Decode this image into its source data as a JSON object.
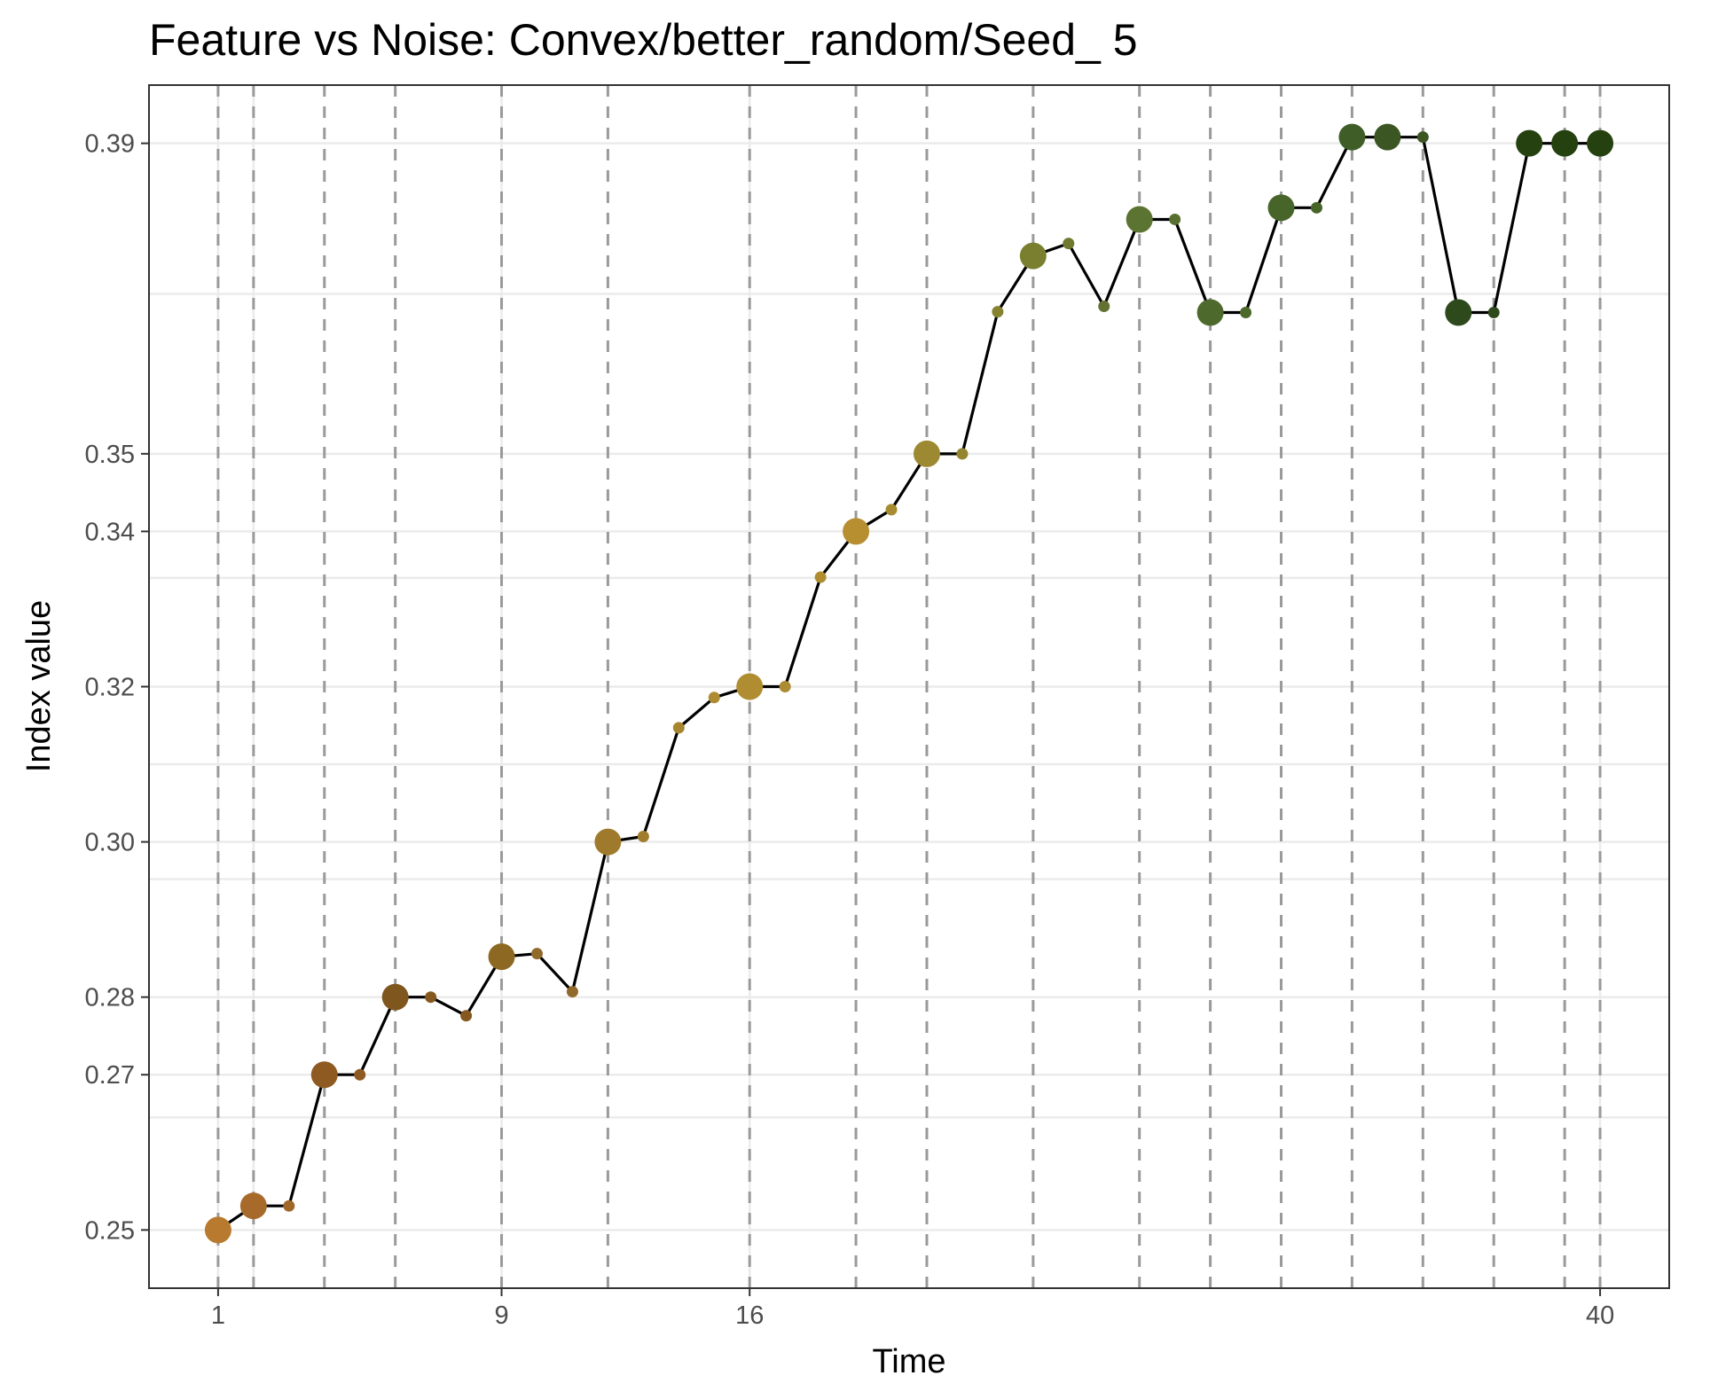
{
  "chart_data": {
    "type": "line",
    "title": "Feature vs Noise: Convex/better_random/Seed_ 5",
    "xlabel": "Time",
    "ylabel": "Index value",
    "xlim": [
      -0.95,
      41.95
    ],
    "ylim": [
      0.2425,
      0.3975
    ],
    "x_breaks": [
      1,
      9,
      16,
      40
    ],
    "x_tick_labels": [
      "1",
      "9",
      "16",
      "40"
    ],
    "y_breaks": [
      0.25,
      0.27,
      0.28,
      0.3,
      0.32,
      0.34,
      0.35,
      0.39
    ],
    "y_tick_labels": [
      "0.25",
      "0.27",
      "0.28",
      "0.30",
      "0.32",
      "0.34",
      "0.35",
      "0.39"
    ],
    "y_gridlines_at": [
      0.25,
      0.2645,
      0.27,
      0.28,
      0.2952,
      0.3,
      0.31,
      0.32,
      0.334,
      0.34,
      0.35,
      0.3706,
      0.39
    ],
    "x_minor_gridlines_at": [
      1,
      2,
      9,
      16,
      40
    ],
    "vertical_dashed_lines": [
      1,
      2,
      4,
      6,
      9,
      12,
      16,
      19,
      21,
      24,
      27,
      29,
      31,
      33,
      35,
      37,
      39,
      40
    ],
    "grid": true,
    "legend": "none",
    "line_color": "#000000",
    "series": [
      {
        "x": [
          1,
          2,
          3,
          4,
          5,
          6,
          7,
          8,
          9,
          10,
          11,
          12,
          13,
          14,
          15,
          16,
          17,
          18,
          19,
          20,
          21,
          22,
          23,
          24,
          25,
          26,
          27,
          28,
          29,
          30,
          31,
          32,
          33,
          34,
          35,
          36,
          37,
          38,
          39,
          40
        ],
        "y": [
          0.25,
          0.2531,
          0.2531,
          0.27,
          0.27,
          0.28,
          0.28,
          0.2776,
          0.2852,
          0.2856,
          0.2807,
          0.3,
          0.3007,
          0.3147,
          0.3186,
          0.32,
          0.32,
          0.3341,
          0.34,
          0.3428,
          0.35,
          0.35,
          0.3683,
          0.3755,
          0.3771,
          0.369,
          0.3802,
          0.3802,
          0.3682,
          0.3682,
          0.3817,
          0.3817,
          0.3908,
          0.3908,
          0.3908,
          0.3682,
          0.3682,
          0.39,
          0.39,
          0.39
        ],
        "sizes": [
          "large",
          "large",
          "small",
          "large",
          "small",
          "large",
          "small",
          "small",
          "large",
          "small",
          "small",
          "large",
          "small",
          "small",
          "small",
          "large",
          "small",
          "small",
          "large",
          "small",
          "large",
          "small",
          "small",
          "large",
          "small",
          "small",
          "large",
          "small",
          "large",
          "small",
          "large",
          "small",
          "large",
          "large",
          "small",
          "large",
          "small",
          "large",
          "large",
          "large"
        ],
        "colors": [
          "#b87a2e",
          "#a86a2b",
          "#a06828",
          "#8e5a21",
          "#8e5a21",
          "#80561f",
          "#85581f",
          "#85581f",
          "#8d6823",
          "#91692a",
          "#91692a",
          "#9f7a2c",
          "#a07c2c",
          "#a8852f",
          "#ad8b31",
          "#b08d31",
          "#ad8b31",
          "#b08d31",
          "#b78f31",
          "#a68b30",
          "#9d8932",
          "#93862f",
          "#858330",
          "#7a7f2f",
          "#707a2f",
          "#637232",
          "#5c7432",
          "#57702f",
          "#4d6a2c",
          "#4d6a2c",
          "#476429",
          "#476429",
          "#3f5d26",
          "#3b5623",
          "#3b5623",
          "#2e4a1c",
          "#2e4a1c",
          "#24410f",
          "#24410f",
          "#24410f"
        ]
      }
    ]
  }
}
